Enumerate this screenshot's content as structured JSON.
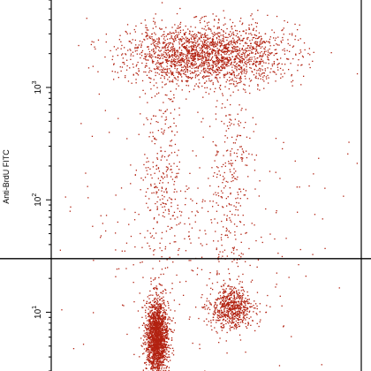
{
  "chart_data": {
    "type": "scatter",
    "title": "",
    "xlabel": "",
    "ylabel": "Anti-BrdU FITC",
    "y_scale": "log",
    "ylim": [
      3,
      6000
    ],
    "xlim": [
      0,
      1
    ],
    "grid": false,
    "point_color": "#b22211",
    "gate_line_y": 30,
    "y_ticks": [
      {
        "base": "10",
        "exp": "1",
        "value": 10
      },
      {
        "base": "10",
        "exp": "2",
        "value": 100
      },
      {
        "base": "10",
        "exp": "3",
        "value": 1000
      }
    ],
    "clusters": [
      {
        "label": "",
        "x_center": 0.34,
        "x_spread": 0.018,
        "y_center": 6,
        "y_log_spread": 0.17,
        "count": 1900
      },
      {
        "label": "",
        "x_center": 0.58,
        "x_spread": 0.035,
        "y_center": 11,
        "y_log_spread": 0.09,
        "count": 650
      },
      {
        "label": "",
        "x_center": 0.5,
        "x_spread": 0.13,
        "y_center": 2000,
        "y_log_spread": 0.13,
        "count": 2100
      },
      {
        "label": "",
        "x_center": 0.36,
        "x_spread": 0.03,
        "y_center": 150,
        "y_log_spread": 0.55,
        "count": 260
      },
      {
        "label": "",
        "x_center": 0.58,
        "x_spread": 0.03,
        "y_center": 150,
        "y_log_spread": 0.55,
        "count": 260
      },
      {
        "label": "",
        "x_center": 0.47,
        "x_spread": 0.2,
        "y_center": 60,
        "y_log_spread": 0.6,
        "count": 350
      }
    ]
  }
}
